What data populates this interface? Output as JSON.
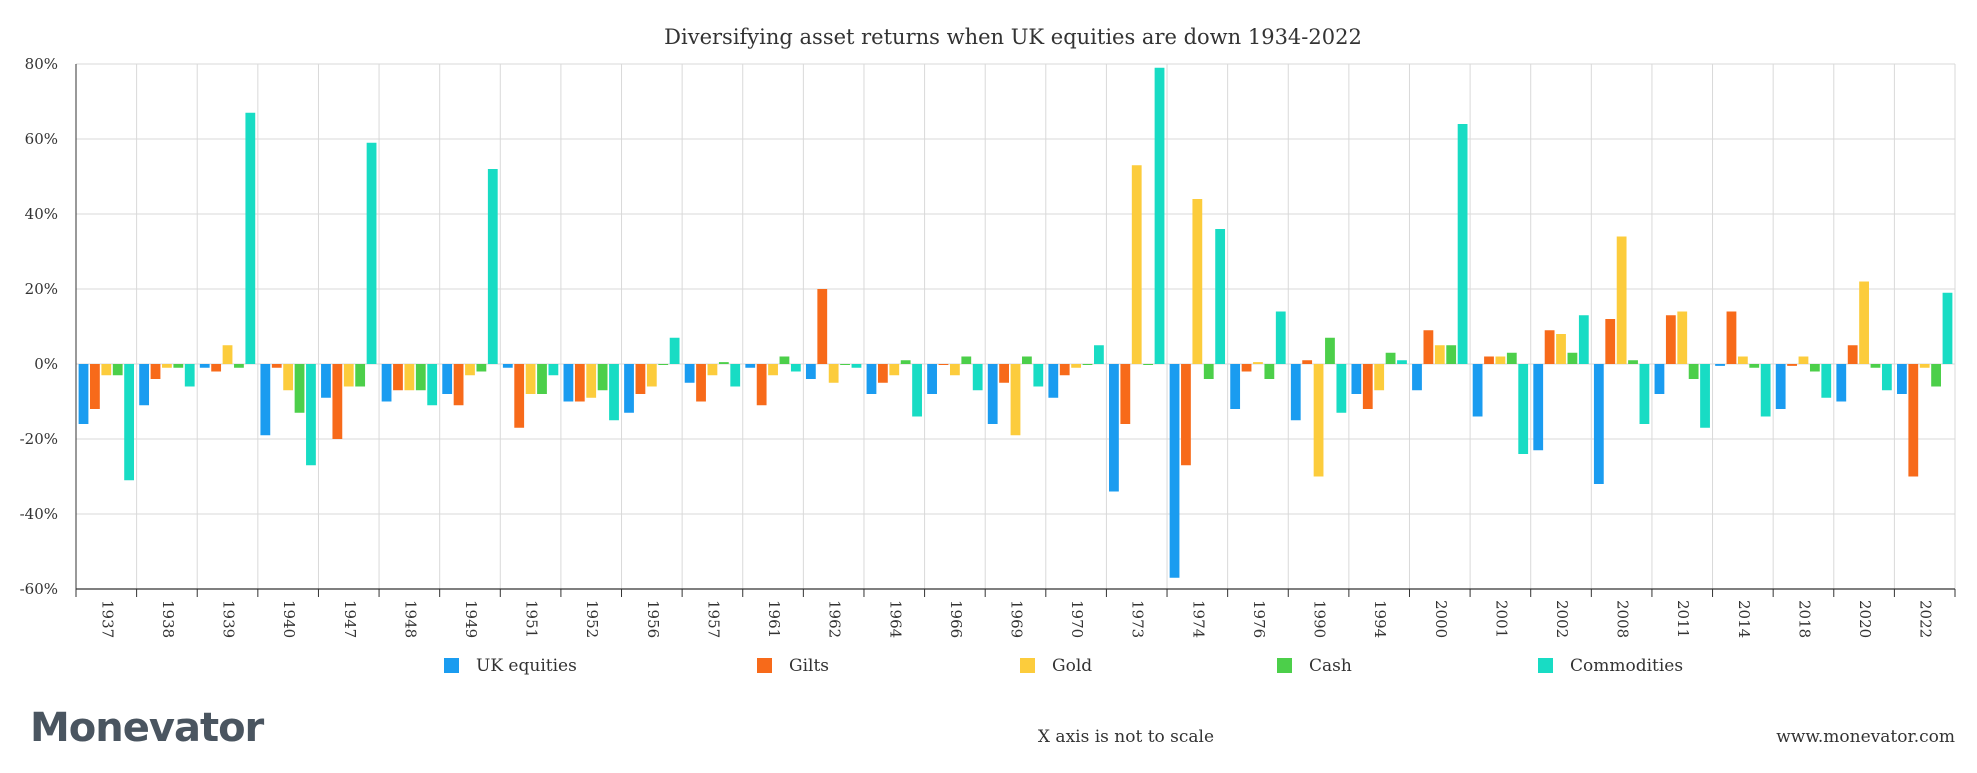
{
  "brand": {
    "logo": "Monevator",
    "url": "www.monevator.com"
  },
  "note": "X axis is not to scale",
  "colors": {
    "UK equities": "#1a9cf0",
    "Gilts": "#f76a1a",
    "Gold": "#fccc3c",
    "Cash": "#4ccf4a",
    "Commodities": "#18dcc4",
    "grid": "#d9d9d9",
    "axis": "#333333"
  },
  "chart_data": {
    "type": "bar",
    "title": "Diversifying asset returns when UK equities are down 1934-2022",
    "xlabel": "",
    "ylabel": "",
    "ylim": [
      -60,
      80
    ],
    "yticks": [
      -60,
      -40,
      -20,
      0,
      20,
      40,
      60,
      80
    ],
    "ytick_labels": [
      "-60%",
      "-40%",
      "-20%",
      "0%",
      "20%",
      "40%",
      "60%",
      "80%"
    ],
    "grid": true,
    "legend_position": "bottom",
    "categories": [
      "1937",
      "1938",
      "1939",
      "1940",
      "1947",
      "1948",
      "1949",
      "1951",
      "1952",
      "1956",
      "1957",
      "1961",
      "1962",
      "1964",
      "1966",
      "1969",
      "1970",
      "1973",
      "1974",
      "1976",
      "1990",
      "1994",
      "2000",
      "2001",
      "2002",
      "2008",
      "2011",
      "2014",
      "2018",
      "2020",
      "2022"
    ],
    "series": [
      {
        "name": "UK equities",
        "values": [
          -16,
          -11,
          -1,
          -19,
          -9,
          -10,
          -8,
          -1,
          -10,
          -13,
          -5,
          -1,
          -4,
          -8,
          -8,
          -16,
          -9,
          -34,
          -57,
          -12,
          -15,
          -8,
          -7,
          -14,
          -23,
          -32,
          -8,
          -0.5,
          -12,
          -10,
          -8
        ]
      },
      {
        "name": "Gilts",
        "values": [
          -12,
          -4,
          -2,
          -1,
          -20,
          -7,
          -11,
          -17,
          -10,
          -8,
          -10,
          -11,
          20,
          -5,
          0,
          -5,
          -3,
          -16,
          -27,
          -2,
          1,
          -12,
          9,
          2,
          9,
          12,
          13,
          14,
          -0.5,
          5,
          -30
        ]
      },
      {
        "name": "Gold",
        "values": [
          -3,
          -1,
          5,
          -7,
          -6,
          -7,
          -3,
          -8,
          -9,
          -6,
          -3,
          -3,
          -5,
          -3,
          -3,
          -19,
          -1,
          53,
          44,
          0.5,
          -30,
          -7,
          5,
          2,
          8,
          34,
          14,
          2,
          2,
          22,
          -1
        ]
      },
      {
        "name": "Cash",
        "values": [
          -3,
          -1,
          -1,
          -13,
          -6,
          -7,
          -2,
          -8,
          -7,
          0,
          0.5,
          2,
          0,
          1,
          2,
          2,
          0,
          0,
          -4,
          -4,
          7,
          3,
          5,
          3,
          3,
          1,
          -4,
          -1,
          -2,
          -1,
          -6
        ]
      },
      {
        "name": "Commodities",
        "values": [
          -31,
          -6,
          67,
          -27,
          59,
          -11,
          52,
          -3,
          -15,
          7,
          -6,
          -2,
          -1,
          -14,
          -7,
          -6,
          5,
          79,
          36,
          14,
          -13,
          1,
          64,
          -24,
          13,
          -16,
          -17,
          -14,
          -9,
          -7,
          19
        ]
      }
    ]
  }
}
